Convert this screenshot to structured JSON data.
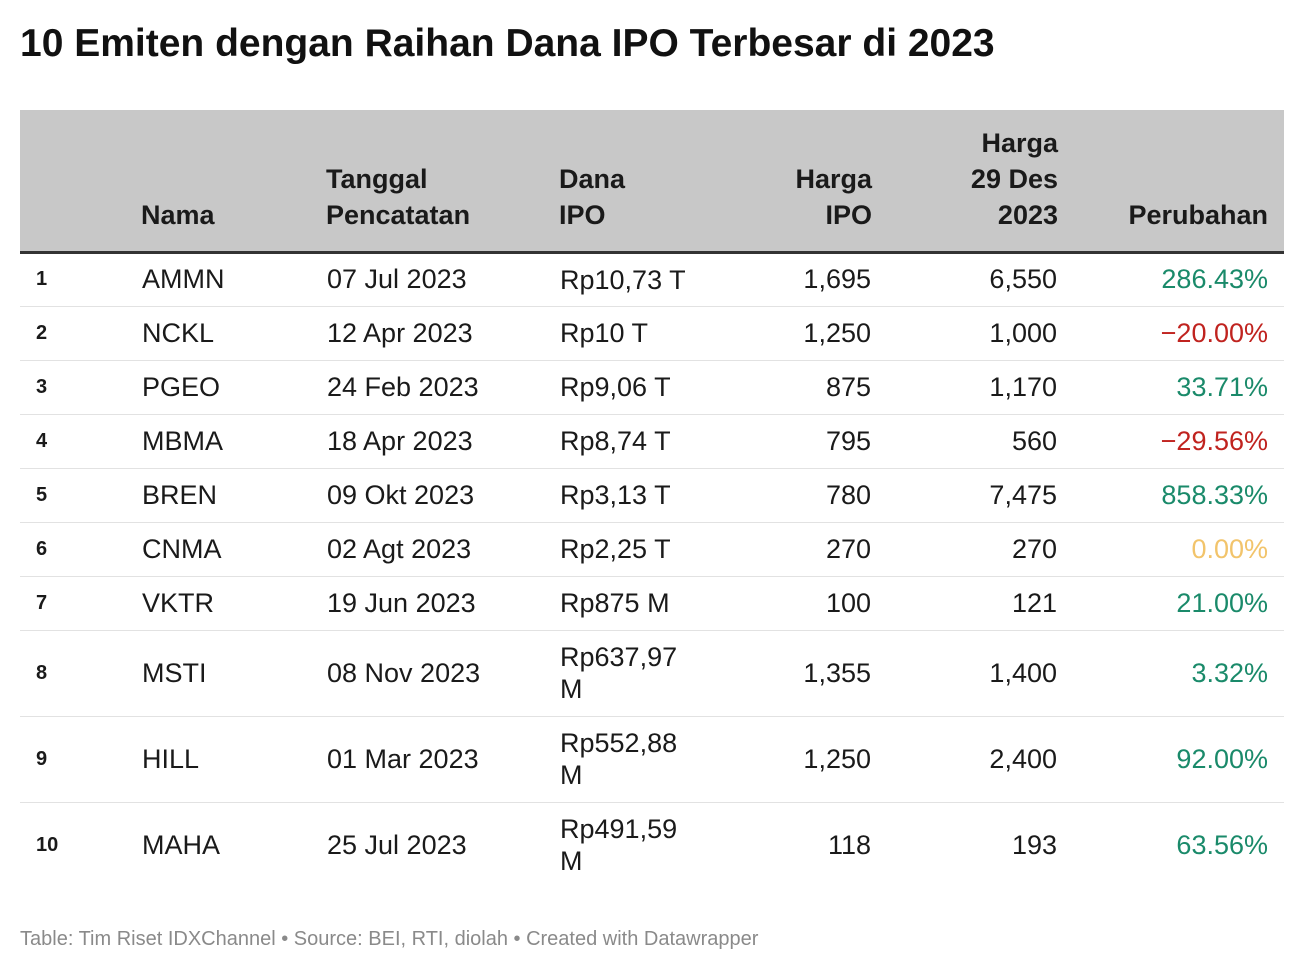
{
  "title": "10 Emiten dengan Raihan Dana IPO Terbesar di 2023",
  "colors": {
    "positive": "#1a8a6a",
    "negative": "#c0231f",
    "zero": "#f2c46b",
    "header_bg": "#c8c8c8"
  },
  "chart_data": {
    "type": "table",
    "columns": [
      "",
      "Nama",
      "Tanggal\nPencatatan",
      "Dana\nIPO",
      "Harga\nIPO",
      "Harga\n29 Des\n2023",
      "Perubahan"
    ],
    "rows": [
      {
        "rank": "1",
        "nama": "AMMN",
        "tanggal": "07 Jul 2023",
        "dana": "Rp10,73 T",
        "harga_ipo": "1,695",
        "harga_des": "6,550",
        "perubahan": "286.43%",
        "sign": "positive"
      },
      {
        "rank": "2",
        "nama": "NCKL",
        "tanggal": "12 Apr 2023",
        "dana": "Rp10 T",
        "harga_ipo": "1,250",
        "harga_des": "1,000",
        "perubahan": "−20.00%",
        "sign": "negative"
      },
      {
        "rank": "3",
        "nama": "PGEO",
        "tanggal": "24 Feb 2023",
        "dana": "Rp9,06 T",
        "harga_ipo": "875",
        "harga_des": "1,170",
        "perubahan": "33.71%",
        "sign": "positive"
      },
      {
        "rank": "4",
        "nama": "MBMA",
        "tanggal": "18 Apr 2023",
        "dana": "Rp8,74 T",
        "harga_ipo": "795",
        "harga_des": "560",
        "perubahan": "−29.56%",
        "sign": "negative"
      },
      {
        "rank": "5",
        "nama": "BREN",
        "tanggal": "09 Okt 2023",
        "dana": "Rp3,13 T",
        "harga_ipo": "780",
        "harga_des": "7,475",
        "perubahan": "858.33%",
        "sign": "positive"
      },
      {
        "rank": "6",
        "nama": "CNMA",
        "tanggal": "02 Agt 2023",
        "dana": "Rp2,25 T",
        "harga_ipo": "270",
        "harga_des": "270",
        "perubahan": "0.00%",
        "sign": "zero"
      },
      {
        "rank": "7",
        "nama": "VKTR",
        "tanggal": "19 Jun 2023",
        "dana": "Rp875 M",
        "harga_ipo": "100",
        "harga_des": "121",
        "perubahan": "21.00%",
        "sign": "positive"
      },
      {
        "rank": "8",
        "nama": "MSTI",
        "tanggal": "08 Nov 2023",
        "dana": "Rp637,97 M",
        "harga_ipo": "1,355",
        "harga_des": "1,400",
        "perubahan": "3.32%",
        "sign": "positive"
      },
      {
        "rank": "9",
        "nama": "HILL",
        "tanggal": "01 Mar 2023",
        "dana": "Rp552,88 M",
        "harga_ipo": "1,250",
        "harga_des": "2,400",
        "perubahan": "92.00%",
        "sign": "positive"
      },
      {
        "rank": "10",
        "nama": "MAHA",
        "tanggal": "25 Jul 2023",
        "dana": "Rp491,59 M",
        "harga_ipo": "118",
        "harga_des": "193",
        "perubahan": "63.56%",
        "sign": "positive"
      }
    ]
  },
  "footer": "Table: Tim Riset IDXChannel • Source: BEI, RTI, diolah • Created with Datawrapper"
}
